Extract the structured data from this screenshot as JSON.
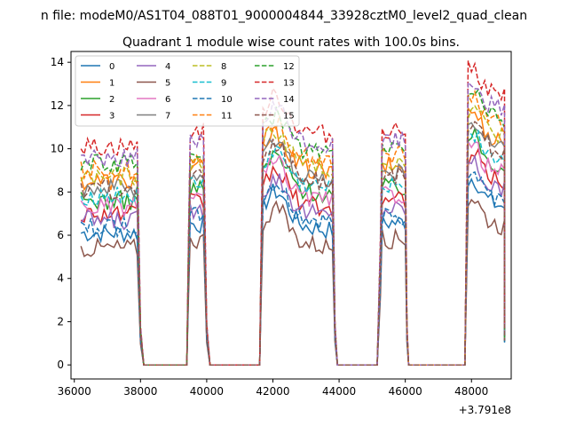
{
  "chart_data": {
    "type": "line",
    "suptitle": "n file: modeM0/AS1T04_088T01_9000004844_33928cztM0_level2_quad_clean",
    "title": "Quadrant 1 module wise count rates with 100.0s bins.",
    "xlabel": "",
    "ylabel": "",
    "x_offset_label": "+3.791e8",
    "xlim": [
      35900,
      49200
    ],
    "ylim": [
      -0.65,
      14.5
    ],
    "xticks": [
      36000,
      38000,
      40000,
      42000,
      44000,
      46000,
      48000
    ],
    "xtick_labels": [
      "36000",
      "38000",
      "40000",
      "42000",
      "44000",
      "46000",
      "48000"
    ],
    "yticks": [
      0,
      2,
      4,
      6,
      8,
      10,
      12,
      14
    ],
    "ytick_labels": [
      "0",
      "2",
      "4",
      "6",
      "8",
      "10",
      "12",
      "14"
    ],
    "segments": [
      [
        36200,
        37900
      ],
      [
        39500,
        39900
      ],
      [
        41700,
        43800
      ],
      [
        45300,
        46000
      ],
      [
        47900,
        49000
      ]
    ],
    "zero_ranges": [
      [
        38100,
        39400
      ],
      [
        40100,
        41600
      ],
      [
        43950,
        45200
      ],
      [
        46100,
        47800
      ]
    ],
    "series": [
      {
        "name": "0",
        "color": "#1f77b4",
        "dash": false,
        "level": 6.1
      },
      {
        "name": "1",
        "color": "#ff7f0e",
        "dash": false,
        "level": 8.5
      },
      {
        "name": "2",
        "color": "#2ca02c",
        "dash": false,
        "level": 7.6
      },
      {
        "name": "3",
        "color": "#d62728",
        "dash": false,
        "level": 7.0
      },
      {
        "name": "4",
        "color": "#9467bd",
        "dash": false,
        "level": 6.7
      },
      {
        "name": "5",
        "color": "#8c564b",
        "dash": false,
        "level": 5.4
      },
      {
        "name": "6",
        "color": "#e377c2",
        "dash": false,
        "level": 7.3
      },
      {
        "name": "7",
        "color": "#7f7f7f",
        "dash": false,
        "level": 8.2
      },
      {
        "name": "8",
        "color": "#bcbd22",
        "dash": true,
        "level": 8.7
      },
      {
        "name": "9",
        "color": "#17becf",
        "dash": true,
        "level": 7.8
      },
      {
        "name": "10",
        "color": "#1f77b4",
        "dash": true,
        "level": 6.4
      },
      {
        "name": "11",
        "color": "#ff7f0e",
        "dash": true,
        "level": 9.0
      },
      {
        "name": "12",
        "color": "#2ca02c",
        "dash": true,
        "level": 9.3
      },
      {
        "name": "13",
        "color": "#d62728",
        "dash": true,
        "level": 10.1
      },
      {
        "name": "14",
        "color": "#9467bd",
        "dash": true,
        "level": 9.6
      },
      {
        "name": "15",
        "color": "#8c564b",
        "dash": true,
        "level": 8.1
      }
    ],
    "legend_position": "upper-left",
    "legend_columns": 4
  }
}
